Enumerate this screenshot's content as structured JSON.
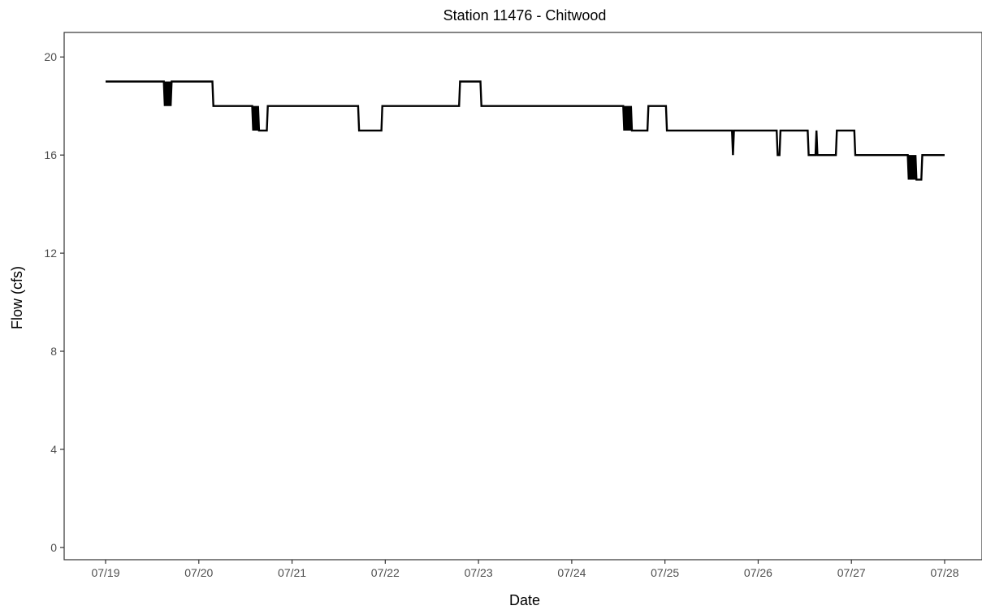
{
  "chart_data": {
    "type": "line",
    "title": "Station 11476 - Chitwood",
    "xlabel": "Date",
    "ylabel": "Flow (cfs)",
    "x_ticks": [
      "07/19",
      "07/20",
      "07/21",
      "07/22",
      "07/23",
      "07/24",
      "07/25",
      "07/26",
      "07/27",
      "07/28"
    ],
    "y_ticks": [
      0,
      4,
      8,
      12,
      16,
      20
    ],
    "xlim": [
      "07/19",
      "07/28"
    ],
    "ylim": [
      -0.5,
      21
    ],
    "grid": false,
    "line_color": "#000000",
    "series": [
      {
        "x": [
          "07/19 00:00",
          "07/19 15:00",
          "07/19 15:15",
          "07/19 15:30",
          "07/19 15:45",
          "07/19 16:00",
          "07/19 16:15",
          "07/19 16:30",
          "07/19 16:45",
          "07/19 17:00",
          "07/19 17:15",
          "07/20 03:30",
          "07/20 03:45",
          "07/20 13:45",
          "07/20 14:00",
          "07/20 14:15",
          "07/20 14:30",
          "07/20 14:45",
          "07/20 15:00",
          "07/20 15:15",
          "07/20 15:30",
          "07/20 17:30",
          "07/20 17:45",
          "07/21 17:00",
          "07/21 17:15",
          "07/21 23:00",
          "07/21 23:15",
          "07/22 19:00",
          "07/22 19:15",
          "07/23 00:30",
          "07/23 00:45",
          "07/24 13:15",
          "07/24 13:30",
          "07/24 13:45",
          "07/24 14:00",
          "07/24 14:15",
          "07/24 14:30",
          "07/24 14:45",
          "07/24 15:00",
          "07/24 15:15",
          "07/24 15:30",
          "07/24 19:30",
          "07/24 19:45",
          "07/24 20:15",
          "07/24 20:30",
          "07/25 00:15",
          "07/25 00:30",
          "07/25 17:15",
          "07/25 17:30",
          "07/25 17:45",
          "07/25 18:00",
          "07/26 04:45",
          "07/26 05:00",
          "07/26 05:30",
          "07/26 05:45",
          "07/26 12:45",
          "07/26 13:00",
          "07/26 14:45",
          "07/26 15:00",
          "07/26 15:15",
          "07/26 15:30",
          "07/26 20:00",
          "07/26 20:15",
          "07/27 00:45",
          "07/27 01:00",
          "07/27 14:30",
          "07/27 14:45",
          "07/27 15:00",
          "07/27 15:15",
          "07/27 15:30",
          "07/27 15:45",
          "07/27 16:00",
          "07/27 16:15",
          "07/27 16:30",
          "07/27 16:45",
          "07/27 18:00",
          "07/27 18:15",
          "07/28 00:00"
        ],
        "values": [
          19,
          19,
          18,
          19,
          18,
          19,
          18,
          19,
          18,
          19,
          19,
          19,
          18,
          18,
          17,
          18,
          17,
          18,
          17,
          18,
          17,
          17,
          18,
          18,
          17,
          17,
          18,
          18,
          19,
          19,
          18,
          18,
          17,
          18,
          17,
          18,
          17,
          18,
          17,
          18,
          17,
          17,
          18,
          18,
          18,
          18,
          17,
          17,
          16,
          17,
          17,
          17,
          16,
          16,
          17,
          17,
          16,
          16,
          17,
          16,
          16,
          16,
          17,
          17,
          16,
          16,
          15,
          16,
          15,
          16,
          15,
          16,
          15,
          16,
          15,
          15,
          16,
          16
        ]
      }
    ]
  }
}
